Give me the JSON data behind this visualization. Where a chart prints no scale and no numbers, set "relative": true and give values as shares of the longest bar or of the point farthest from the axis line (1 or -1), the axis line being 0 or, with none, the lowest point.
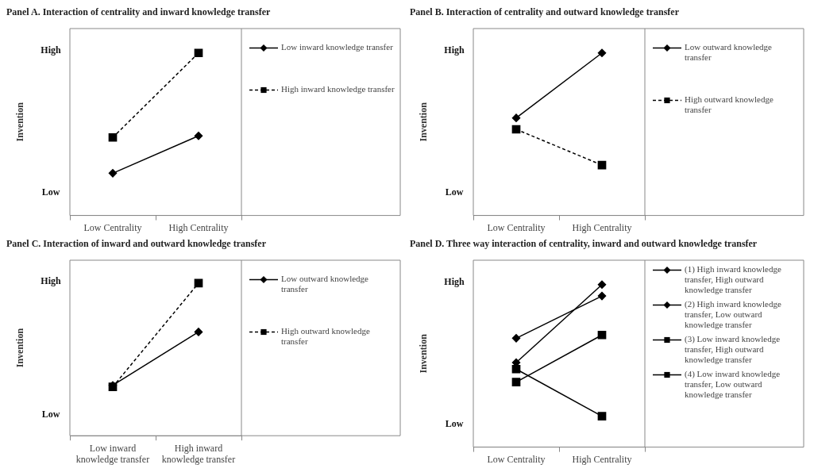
{
  "chart_data": [
    {
      "type": "line",
      "title": "Panel A. Interaction of centrality and inward knowledge transfer",
      "ylabel": "Invention",
      "categories": [
        "Low Centrality",
        "High Centrality"
      ],
      "relative": true,
      "annotations": [
        "High",
        "Low"
      ],
      "legend": "right",
      "series": [
        {
          "name": "Low inward knowledge transfer",
          "color": "#000000",
          "marker": "diamond",
          "line_style": "solid",
          "values": [
            0.26,
            0.49
          ]
        },
        {
          "name": "High inward knowledge transfer",
          "color": "#000000",
          "marker": "square",
          "line_style": "dashed",
          "values": [
            0.48,
            1
          ]
        }
      ]
    },
    {
      "type": "line",
      "title": "Panel B. Interaction of centrality and outward knowledge transfer",
      "ylabel": "Invention",
      "categories": [
        "Low Centrality",
        "High Centrality"
      ],
      "relative": true,
      "annotations": [
        "High",
        "Low"
      ],
      "legend": "right",
      "series": [
        {
          "name": "Low outward knowledge transfer",
          "color": "#000000",
          "marker": "diamond",
          "line_style": "solid",
          "values": [
            0.6,
            1
          ]
        },
        {
          "name": "High outward knowledge transfer",
          "color": "#000000",
          "marker": "square",
          "line_style": "dashed",
          "values": [
            0.53,
            0.31
          ]
        }
      ]
    },
    {
      "type": "line",
      "title": "Panel C. Interaction of inward and outward knowledge transfer",
      "ylabel": "Invention",
      "categories": [
        "Low inward knowledge transfer",
        "High inward knowledge transfer"
      ],
      "relative": true,
      "annotations": [
        "High",
        "Low"
      ],
      "legend": "right",
      "series": [
        {
          "name": "Low outward knowledge transfer",
          "color": "#000000",
          "marker": "diamond",
          "line_style": "solid",
          "values": [
            0.33,
            0.68
          ]
        },
        {
          "name": "High outward knowledge transfer",
          "color": "#000000",
          "marker": "square",
          "line_style": "dashed",
          "values": [
            0.32,
            1
          ]
        }
      ]
    },
    {
      "type": "line",
      "title": "Panel D. Three way interaction of centrality, inward and outward knowledge transfer",
      "ylabel": "Invention",
      "categories": [
        "Low Centrality",
        "High Centrality"
      ],
      "relative": true,
      "annotations": [
        "High",
        "Low"
      ],
      "legend": "right",
      "series": [
        {
          "name": "(1) High inward knowledge transfer, High outward knowledge transfer",
          "color": "#000000",
          "marker": "diamond",
          "line_style": "solid",
          "values": [
            0.67,
            0.93
          ]
        },
        {
          "name": "(2) High inward knowledge transfer, Low outward knowledge transfer",
          "color": "#000000",
          "marker": "diamond",
          "line_style": "solid",
          "values": [
            0.52,
            1
          ]
        },
        {
          "name": "(3) Low inward knowledge transfer, High outward knowledge transfer",
          "color": "#000000",
          "marker": "square",
          "line_style": "solid",
          "values": [
            0.48,
            0.19
          ]
        },
        {
          "name": "(4) Low inward knowledge transfer, Low outward knowledge transfer",
          "color": "#000000",
          "marker": "square",
          "line_style": "solid",
          "values": [
            0.4,
            0.69
          ]
        }
      ]
    }
  ]
}
